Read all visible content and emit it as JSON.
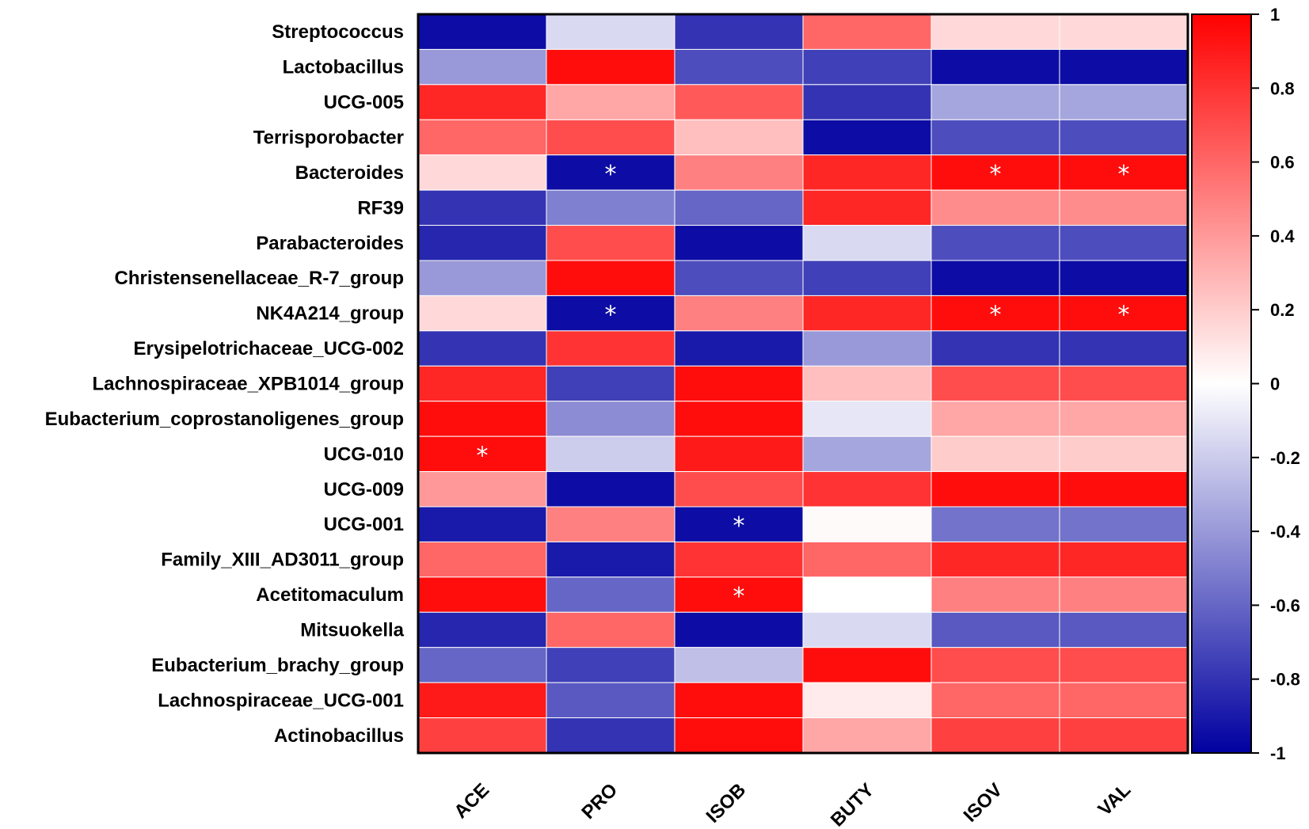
{
  "chart_data": {
    "type": "heatmap",
    "title": "",
    "xlabel": "",
    "ylabel": "",
    "rows": [
      "Streptococcus",
      "Lactobacillus",
      "UCG-005",
      "Terrisporobacter",
      "Bacteroides",
      "RF39",
      "Parabacteroides",
      "Christensenellaceae_R-7_group",
      "NK4A214_group",
      "Erysipelotrichaceae_UCG-002",
      "Lachnospiraceae_XPB1014_group",
      "Eubacterium_coprostanoligenes_group",
      "UCG-010",
      "UCG-009",
      "UCG-001",
      "Family_XIII_AD3011_group",
      "Acetitomaculum",
      "Mitsuokella",
      "Eubacterium_brachy_group",
      "Lachnospiraceae_UCG-001",
      "Actinobacillus"
    ],
    "columns": [
      "ACE",
      "PRO",
      "ISOB",
      "BUTY",
      "ISOV",
      "VAL"
    ],
    "values": [
      [
        -0.95,
        -0.15,
        -0.8,
        0.6,
        0.15,
        0.15
      ],
      [
        -0.4,
        0.95,
        -0.7,
        -0.75,
        -0.95,
        -0.95
      ],
      [
        0.85,
        0.35,
        0.65,
        -0.8,
        -0.35,
        -0.35
      ],
      [
        0.6,
        0.7,
        0.25,
        -0.95,
        -0.7,
        -0.7
      ],
      [
        0.15,
        -0.95,
        0.5,
        0.85,
        0.95,
        0.95
      ],
      [
        -0.8,
        -0.5,
        -0.6,
        0.85,
        0.45,
        0.45
      ],
      [
        -0.85,
        0.7,
        -0.95,
        -0.15,
        -0.7,
        -0.7
      ],
      [
        -0.4,
        0.95,
        -0.7,
        -0.75,
        -0.95,
        -0.95
      ],
      [
        0.15,
        -0.95,
        0.5,
        0.85,
        0.95,
        0.95
      ],
      [
        -0.8,
        0.8,
        -0.9,
        -0.4,
        -0.8,
        -0.8
      ],
      [
        0.85,
        -0.75,
        0.95,
        0.25,
        0.7,
        0.7
      ],
      [
        0.95,
        -0.45,
        0.95,
        -0.1,
        0.35,
        0.35
      ],
      [
        0.95,
        -0.2,
        0.9,
        -0.35,
        0.2,
        0.2
      ],
      [
        0.4,
        -0.95,
        0.7,
        0.8,
        0.95,
        0.95
      ],
      [
        -0.9,
        0.5,
        -0.95,
        0.02,
        -0.55,
        -0.55
      ],
      [
        0.6,
        -0.9,
        0.8,
        0.6,
        0.85,
        0.85
      ],
      [
        0.95,
        -0.6,
        0.95,
        0.0,
        0.5,
        0.5
      ],
      [
        -0.85,
        0.6,
        -0.95,
        -0.15,
        -0.65,
        -0.65
      ],
      [
        -0.6,
        -0.75,
        -0.25,
        0.95,
        0.7,
        0.7
      ],
      [
        0.9,
        -0.65,
        0.95,
        0.08,
        0.6,
        0.6
      ],
      [
        0.75,
        -0.8,
        0.95,
        0.35,
        0.75,
        0.75
      ]
    ],
    "significance_marker": "*",
    "significant": [
      [
        4,
        1
      ],
      [
        4,
        4
      ],
      [
        4,
        5
      ],
      [
        8,
        1
      ],
      [
        8,
        4
      ],
      [
        8,
        5
      ],
      [
        12,
        0
      ],
      [
        14,
        2
      ],
      [
        16,
        2
      ]
    ],
    "colorbar": {
      "range": [
        -1,
        1
      ],
      "ticks": [
        "1",
        "0.8",
        "0.6",
        "0.4",
        "0.2",
        "0",
        "-0.2",
        "-0.4",
        "-0.6",
        "-0.8",
        "-1"
      ],
      "low_color": "#0000a0",
      "mid_color": "#ffffff",
      "high_color": "#ff0000"
    }
  }
}
